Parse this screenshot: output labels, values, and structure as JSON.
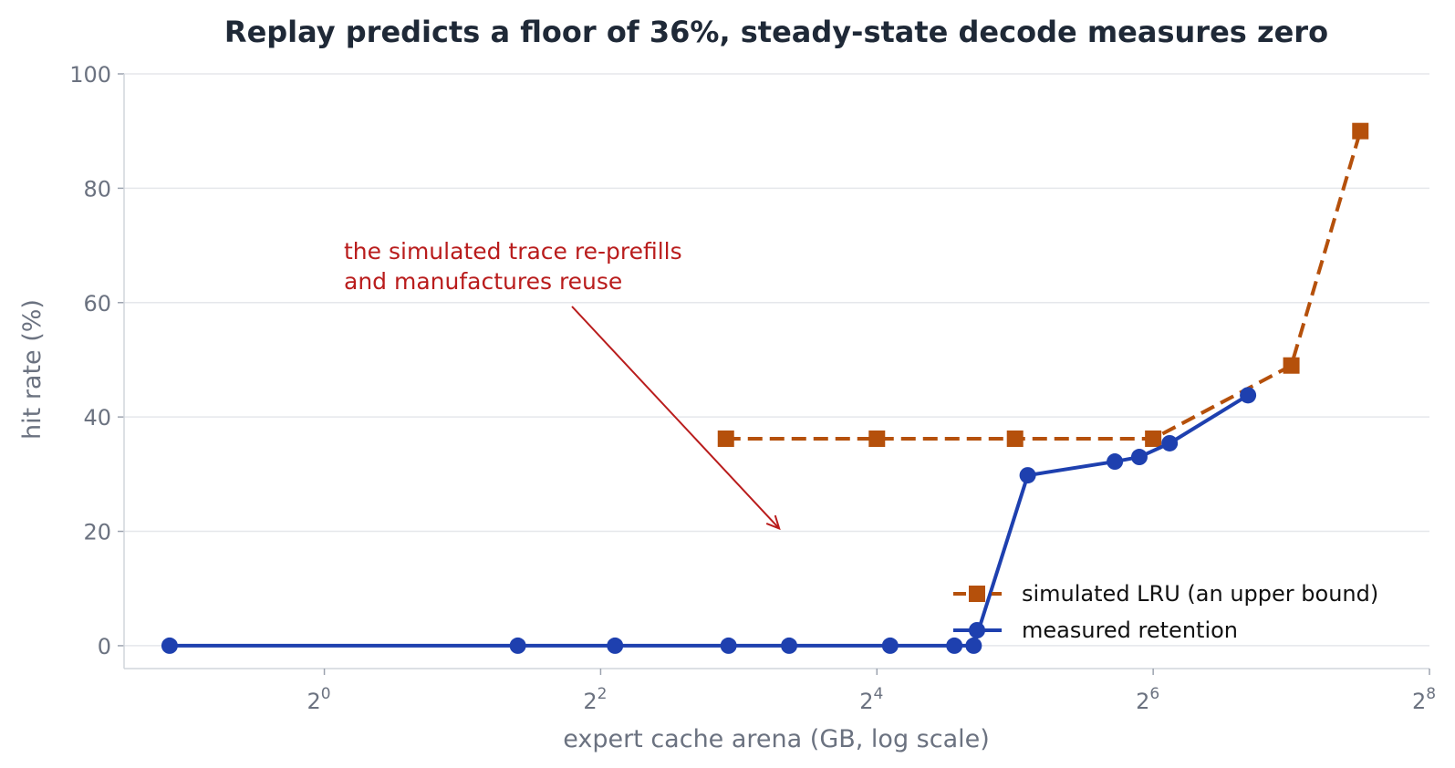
{
  "chart_data": {
    "type": "line",
    "title": "Replay predicts a floor of 36%, steady-state decode measures zero",
    "xlabel": "expert cache arena (GB, log scale)",
    "ylabel": "hit rate (%)",
    "x_scale": "log2",
    "xlim_log2": [
      -1.45,
      8
    ],
    "ylim": [
      -4,
      100
    ],
    "x_ticks": [
      {
        "exp": 0,
        "base": "2",
        "sup": "0"
      },
      {
        "exp": 2,
        "base": "2",
        "sup": "2"
      },
      {
        "exp": 4,
        "base": "2",
        "sup": "4"
      },
      {
        "exp": 6,
        "base": "2",
        "sup": "6"
      },
      {
        "exp": 8,
        "base": "2",
        "sup": "8"
      }
    ],
    "y_ticks": [
      0,
      20,
      40,
      60,
      80,
      100
    ],
    "grid": true,
    "legend_position": "lower-right",
    "series": [
      {
        "name": "simulated LRU (an upper bound)",
        "color": "#b5500b",
        "marker": "square",
        "linestyle": "dashed",
        "x": [
          7.5,
          16,
          32,
          64,
          128,
          181
        ],
        "y": [
          36.2,
          36.2,
          36.2,
          36.2,
          49,
          90
        ]
      },
      {
        "name": "measured retention",
        "color": "#1e40af",
        "marker": "circle",
        "linestyle": "solid",
        "x": [
          0.46,
          2.64,
          4.3,
          7.6,
          10.3,
          17.1,
          23.6,
          26,
          34.1,
          52.8,
          59.7,
          69.5,
          103
        ],
        "y": [
          0,
          0,
          0,
          0,
          0,
          0,
          0,
          0,
          29.8,
          32.2,
          33,
          35.4,
          43.8
        ]
      }
    ],
    "annotation": {
      "lines": [
        "the simulated trace re-prefills",
        "and manufactures reuse"
      ],
      "color": "#b91c1c",
      "arrow_to": {
        "x": 9.8,
        "y": 20.5
      }
    }
  }
}
